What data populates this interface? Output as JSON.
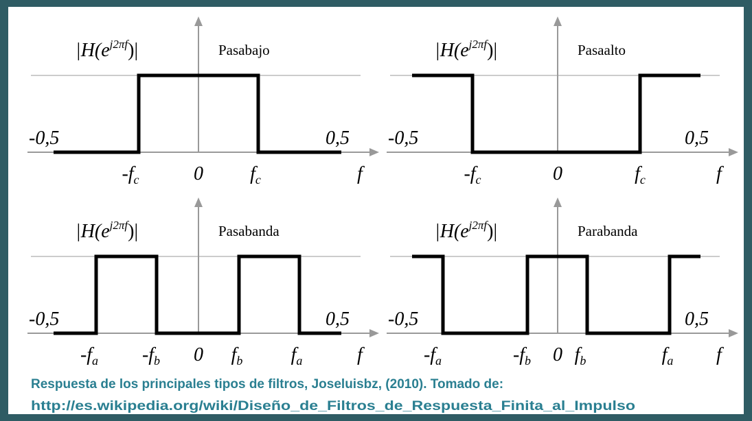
{
  "panels": [
    {
      "name": "Pasabajo",
      "y_label": {
        "main": "|H(e",
        "sup": "j2πf",
        "close": ")|"
      },
      "range_low": "-0,5",
      "range_high": "0,5",
      "x_labels": [
        {
          "main": "-f",
          "sub": "c"
        },
        {
          "main": "0"
        },
        {
          "main": "f",
          "sub": "c"
        }
      ],
      "x_axis": "f"
    },
    {
      "name": "Pasaalto",
      "y_label": {
        "main": "|H(e",
        "sup": "j2πf",
        "close": ")|"
      },
      "range_low": "-0,5",
      "range_high": "0,5",
      "x_labels": [
        {
          "main": "-f",
          "sub": "c"
        },
        {
          "main": "0"
        },
        {
          "main": "f",
          "sub": "c"
        }
      ],
      "x_axis": "f"
    },
    {
      "name": "Pasabanda",
      "y_label": {
        "main": "|H(e",
        "sup": "j2πf",
        "close": ")|"
      },
      "range_low": "-0,5",
      "range_high": "0,5",
      "x_labels": [
        {
          "main": "-f",
          "sub": "a"
        },
        {
          "main": "-f",
          "sub": "b"
        },
        {
          "main": "0"
        },
        {
          "main": "f",
          "sub": "b"
        },
        {
          "main": "f",
          "sub": "a"
        }
      ],
      "x_axis": "f"
    },
    {
      "name": "Parabanda",
      "y_label": {
        "main": "|H(e",
        "sup": "j2πf",
        "close": ")|"
      },
      "range_low": "-0,5",
      "range_high": "0,5",
      "x_labels": [
        {
          "main": "-f",
          "sub": "a"
        },
        {
          "main": "-f",
          "sub": "b"
        },
        {
          "main": "0"
        },
        {
          "main": "f",
          "sub": "b"
        },
        {
          "main": "f",
          "sub": "a"
        }
      ],
      "x_axis": "f"
    }
  ],
  "caption": [
    "Respuesta de los principales tipos de filtros, Joseluisbz, (2010). Tomado de:",
    "http://es.wikipedia.org/wiki/Diseño_de_Filtros_de_Respuesta_Finita_al_Impulso"
  ]
}
